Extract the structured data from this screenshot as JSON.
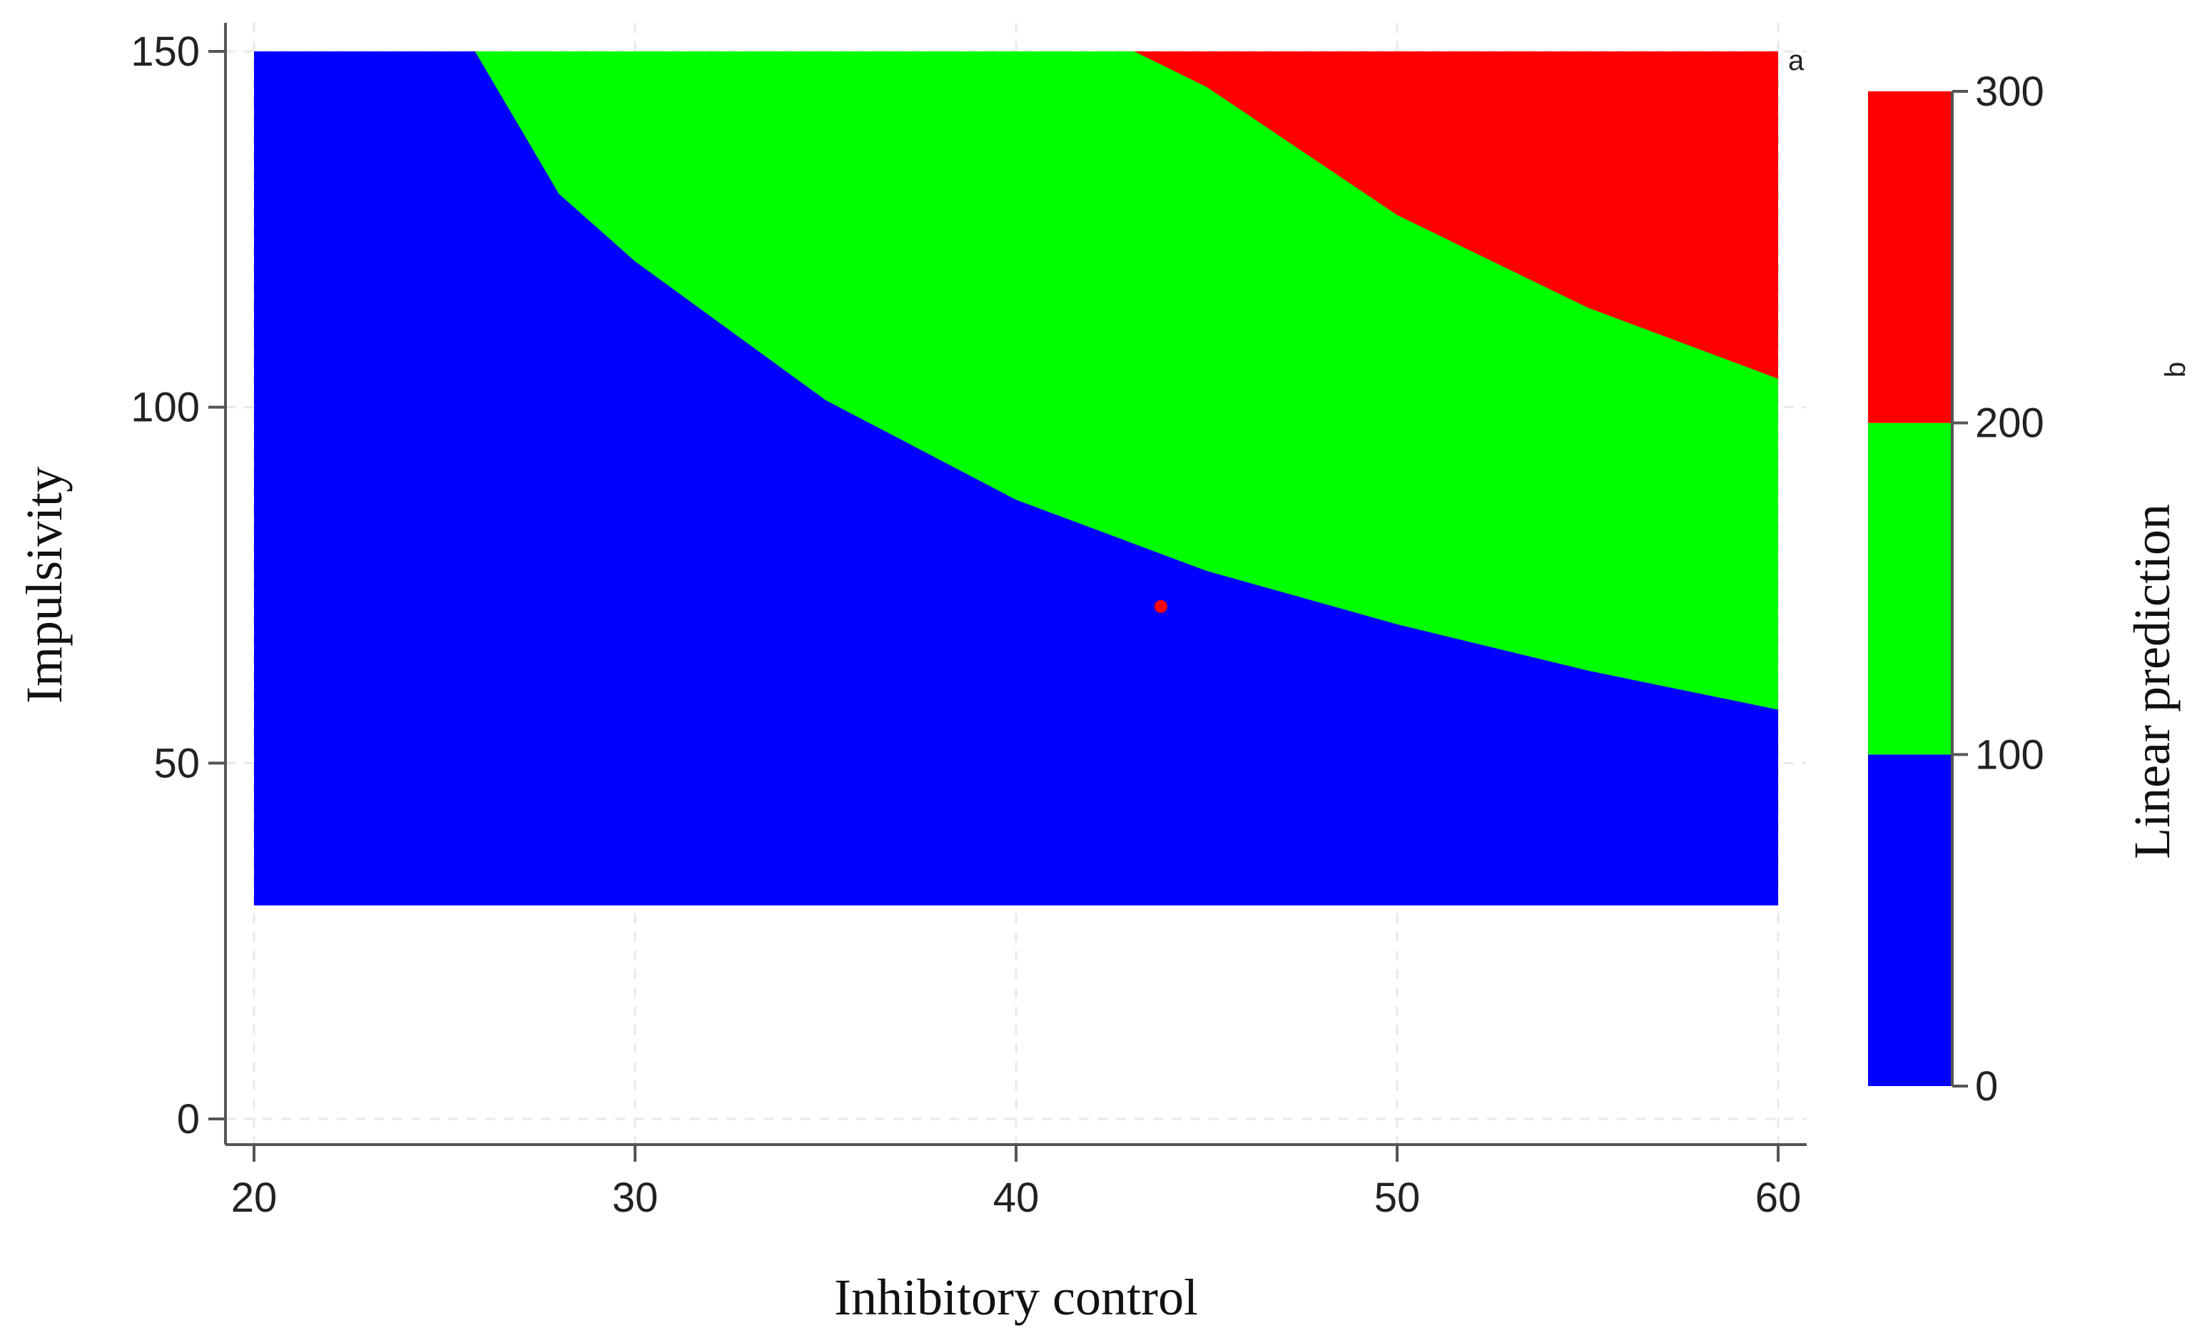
{
  "chart_data": {
    "type": "heatmap",
    "subtype": "contour",
    "xlabel": "Inhibitory control",
    "ylabel": "Impulsivity",
    "xlim": [
      20,
      60
    ],
    "ylim": [
      0,
      150
    ],
    "x_ticks": [
      "20",
      "30",
      "40",
      "50",
      "60"
    ],
    "y_ticks": [
      "0",
      "50",
      "100",
      "150"
    ],
    "grid": true,
    "surface_extent": {
      "x": [
        20,
        60
      ],
      "y": [
        30,
        150
      ]
    },
    "levels": [
      {
        "range": [
          0,
          100
        ],
        "color": "#0000ff"
      },
      {
        "range": [
          100,
          200
        ],
        "color": "#00ff00"
      },
      {
        "range": [
          200,
          300
        ],
        "color": "#ff0000"
      }
    ],
    "contours": [
      {
        "level": 100,
        "points": [
          [
            25.8,
            150
          ],
          [
            28,
            130
          ],
          [
            30,
            120.5
          ],
          [
            35,
            101
          ],
          [
            40,
            87
          ],
          [
            45,
            77
          ],
          [
            50,
            69.5
          ],
          [
            55,
            63
          ],
          [
            60,
            57.5
          ]
        ]
      },
      {
        "level": 200,
        "points": [
          [
            43.1,
            150
          ],
          [
            45,
            145
          ],
          [
            50,
            127
          ],
          [
            55,
            114
          ],
          [
            60,
            104
          ]
        ]
      }
    ],
    "marker": {
      "x": 43.8,
      "y": 72,
      "color": "#ff0000"
    },
    "colorbar": {
      "title": "Linear prediction",
      "title_subscript": "b",
      "ticks": [
        "0",
        "100",
        "200",
        "300"
      ],
      "range": [
        0,
        300
      ]
    },
    "annotation": "a"
  }
}
